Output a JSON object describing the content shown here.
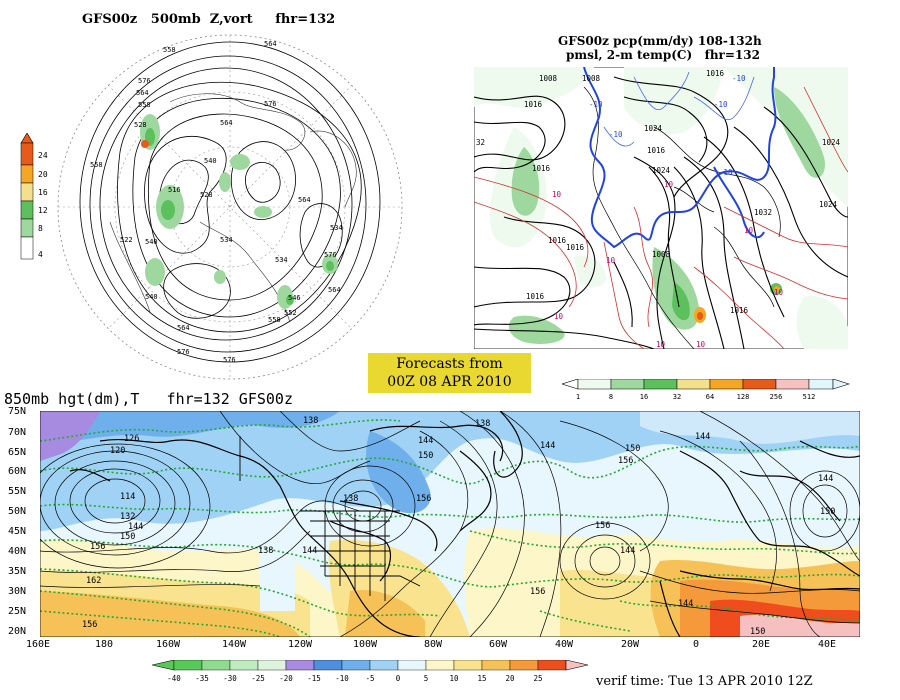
{
  "panel_500mb": {
    "title": "GFS00z   500mb  Z,vort     fhr=132",
    "colorbar": {
      "ticks": [
        "4",
        "8",
        "12",
        "16",
        "20",
        "24"
      ],
      "colors": [
        "#ffffff",
        "#9ed89e",
        "#5cc15c",
        "#f2e08a",
        "#f5a623",
        "#e85a1a"
      ]
    },
    "contour_labels": [
      "552",
      "558",
      "564",
      "570",
      "576",
      "540",
      "546",
      "528",
      "516",
      "522",
      "534",
      "564",
      "576",
      "546",
      "552",
      "558",
      "564",
      "570",
      "576",
      "582"
    ]
  },
  "panel_pcp": {
    "title_line1": "GFS00z pcp(mm/dy) 108-132h",
    "title_line2": "pmsl, 2-m temp(C)   fhr=132",
    "isobar_labels": [
      "1008",
      "1016",
      "1008",
      "1024",
      "1016",
      "1024",
      "1016",
      "1032",
      "1016",
      "1024",
      "1016",
      "1008",
      "1016"
    ],
    "temp_labels": [
      "-10",
      "-10",
      "-10",
      "-10",
      "-10",
      "10",
      "10",
      "10",
      "10",
      "10",
      "10",
      "10",
      "10"
    ],
    "colorbar": {
      "ticks": [
        "1",
        "8",
        "16",
        "32",
        "64",
        "128",
        "256",
        "512"
      ],
      "colors": [
        "#eefaee",
        "#9ed89e",
        "#5cc15c",
        "#f2e08a",
        "#f5a623",
        "#e85a1a",
        "#f7c1c1",
        "#dff6fb"
      ]
    }
  },
  "banner": {
    "line1": "Forecasts from",
    "line2": "00Z 08 APR 2010"
  },
  "panel_850mb": {
    "title": "850mb hgt(dm),T   fhr=132 GFS00z",
    "lat_labels": [
      "75N",
      "70N",
      "65N",
      "60N",
      "55N",
      "50N",
      "45N",
      "40N",
      "35N",
      "30N",
      "25N",
      "20N"
    ],
    "lon_labels": [
      "160E",
      "180",
      "160W",
      "140W",
      "120W",
      "100W",
      "80W",
      "60W",
      "40W",
      "20W",
      "0",
      "20E",
      "40E"
    ],
    "height_labels": [
      "126",
      "120",
      "114",
      "132",
      "138",
      "144",
      "150",
      "156",
      "162",
      "156",
      "138",
      "144",
      "138",
      "144",
      "150",
      "156",
      "144",
      "150",
      "156",
      "138",
      "144",
      "156",
      "162",
      "144",
      "150",
      "156",
      "144",
      "150",
      "156",
      "144",
      "150"
    ],
    "colorbar": {
      "ticks": [
        "-40",
        "-35",
        "-30",
        "-25",
        "-20",
        "-15",
        "-10",
        "-5",
        "0",
        "5",
        "10",
        "15",
        "20",
        "25"
      ],
      "colors": [
        "#58c858",
        "#8fdc8f",
        "#bfecbf",
        "#a78be0",
        "#4f8fe0",
        "#6fb0ec",
        "#9fd2f4",
        "#cfe8fa",
        "#e8f6fd",
        "#fdf6c8",
        "#f9e38e",
        "#f6c257",
        "#f49a3a",
        "#ef4d1e",
        "#f6c0c0"
      ]
    }
  },
  "verif_time": "verif time: Tue 13 APR 2010 12Z"
}
